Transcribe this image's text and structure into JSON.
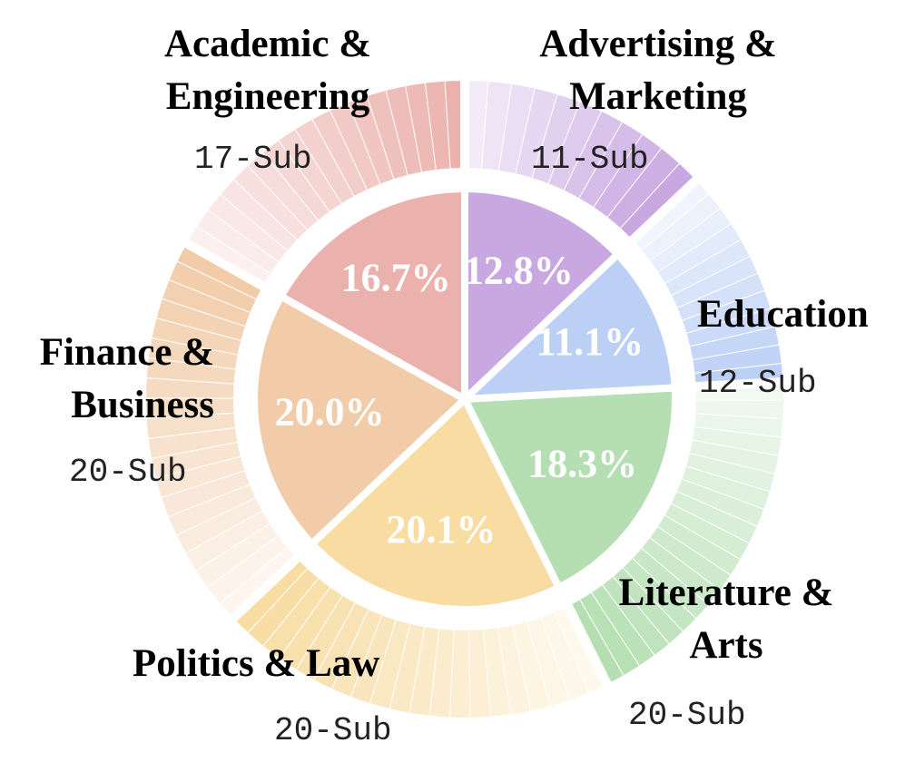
{
  "chart_data": {
    "type": "pie",
    "categories": [
      "Advertising & Marketing",
      "Education",
      "Literature & Arts",
      "Politics & Law",
      "Finance & Business",
      "Academic & Engineering"
    ],
    "values": [
      12.8,
      11.1,
      18.3,
      20.1,
      20.0,
      16.7
    ],
    "value_labels": [
      "12.8%",
      "11.1%",
      "18.3%",
      "20.1%",
      "20.0%",
      "16.7%"
    ],
    "sub_counts": [
      11,
      12,
      20,
      20,
      20,
      17
    ],
    "sub_labels": [
      "11-Sub",
      "12-Sub",
      "20-Sub",
      "20-Sub",
      "20-Sub",
      "17-Sub"
    ],
    "colors": [
      "#c9a8e2",
      "#bcd0f6",
      "#b5dfb2",
      "#f8dca2",
      "#f2cca9",
      "#ebb2ad"
    ]
  }
}
